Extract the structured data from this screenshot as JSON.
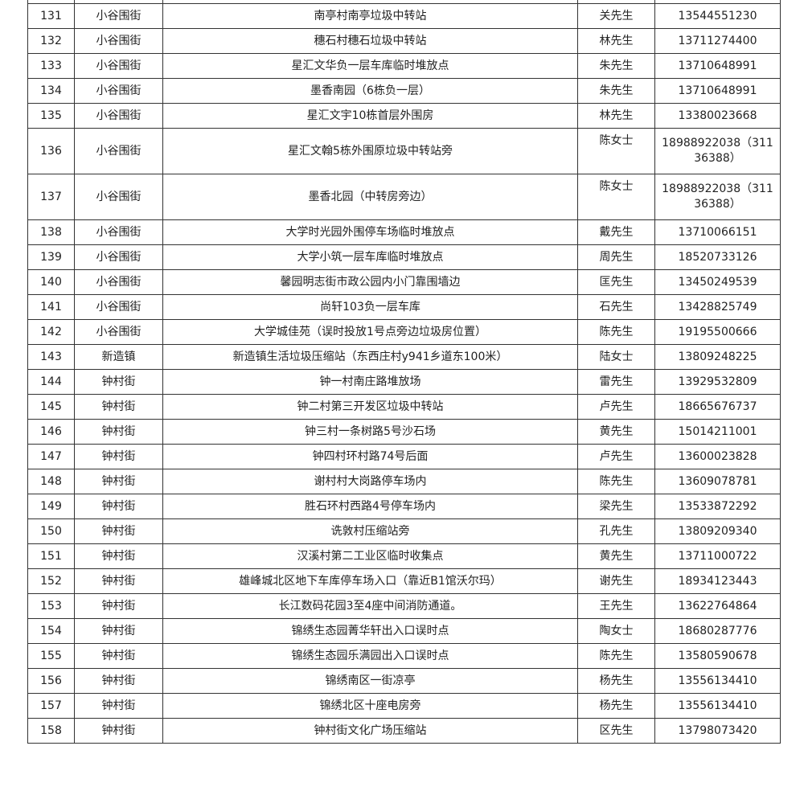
{
  "rows": [
    [
      "131",
      "小谷围街",
      "南亭村南亭垃圾中转站",
      "关先生",
      "13544551230"
    ],
    [
      "132",
      "小谷围街",
      "穗石村穗石垃圾中转站",
      "林先生",
      "13711274400"
    ],
    [
      "133",
      "小谷围街",
      "星汇文华负一层车库临时堆放点",
      "朱先生",
      "13710648991"
    ],
    [
      "134",
      "小谷围街",
      "墨香南园（6栋负一层）",
      "朱先生",
      "13710648991"
    ],
    [
      "135",
      "小谷围街",
      "星汇文宇10栋首层外围房",
      "林先生",
      "13380023668"
    ],
    [
      "136",
      "小谷围街",
      "星汇文翰5栋外围原垃圾中转站旁",
      "陈女士",
      "18988922038（31136388）"
    ],
    [
      "137",
      "小谷围街",
      "墨香北园（中转房旁边）",
      "陈女士",
      "18988922038（31136388）"
    ],
    [
      "138",
      "小谷围街",
      "大学时光园外围停车场临时堆放点",
      "戴先生",
      "13710066151"
    ],
    [
      "139",
      "小谷围街",
      "大学小筑一层车库临时堆放点",
      "周先生",
      "18520733126"
    ],
    [
      "140",
      "小谷围街",
      "馨园明志街市政公园内小门靠围墙边",
      "匡先生",
      "13450249539"
    ],
    [
      "141",
      "小谷围街",
      "尚轩103负一层车库",
      "石先生",
      "13428825749"
    ],
    [
      "142",
      "小谷围街",
      "大学城佳苑（误时投放1号点旁边垃圾房位置）",
      "陈先生",
      "19195500666"
    ],
    [
      "143",
      "新造镇",
      "新造镇生活垃圾压缩站（东西庄村y941乡道东100米）",
      "陆女士",
      "13809248225"
    ],
    [
      "144",
      "钟村街",
      "钟一村南庄路堆放场",
      "雷先生",
      "13929532809"
    ],
    [
      "145",
      "钟村街",
      "钟二村第三开发区垃圾中转站",
      "卢先生",
      "18665676737"
    ],
    [
      "146",
      "钟村街",
      "钟三村一条树路5号沙石场",
      "黄先生",
      "15014211001"
    ],
    [
      "147",
      "钟村街",
      "钟四村环村路74号后面",
      "卢先生",
      "13600023828"
    ],
    [
      "148",
      "钟村街",
      "谢村村大岗路停车场内",
      "陈先生",
      "13609078781"
    ],
    [
      "149",
      "钟村街",
      "胜石环村西路4号停车场内",
      "梁先生",
      "13533872292"
    ],
    [
      "150",
      "钟村街",
      "诜敦村压缩站旁",
      "孔先生",
      "13809209340"
    ],
    [
      "151",
      "钟村街",
      "汉溪村第二工业区临时收集点",
      "黄先生",
      "13711000722"
    ],
    [
      "152",
      "钟村街",
      "雄峰城北区地下车库停车场入口（靠近B1馆沃尔玛）",
      "谢先生",
      "18934123443"
    ],
    [
      "153",
      "钟村街",
      "长江数码花园3至4座中间消防通道。",
      "王先生",
      "13622764864"
    ],
    [
      "154",
      "钟村街",
      "锦绣生态园菁华轩出入口误时点",
      "陶女士",
      "18680287776"
    ],
    [
      "155",
      "钟村街",
      "锦绣生态园乐满园出入口误时点",
      "陈先生",
      "13580590678"
    ],
    [
      "156",
      "钟村街",
      "锦绣南区一街凉亭",
      "杨先生",
      "13556134410"
    ],
    [
      "157",
      "钟村街",
      "锦绣北区十座电房旁",
      "杨先生",
      "13556134410"
    ],
    [
      "158",
      "钟村街",
      "钟村街文化广场压缩站",
      "区先生",
      "13798073420"
    ]
  ]
}
